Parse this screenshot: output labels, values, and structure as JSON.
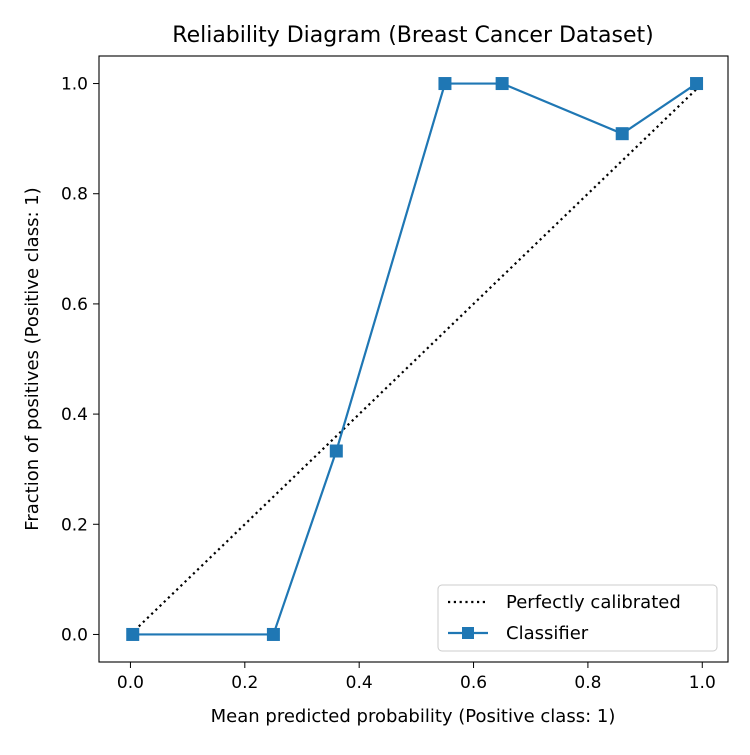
{
  "chart_data": {
    "type": "line",
    "title": "Reliability Diagram (Breast Cancer Dataset)",
    "xlabel": "Mean predicted probability (Positive class: 1)",
    "ylabel": "Fraction of positives (Positive class: 1)",
    "xlim": [
      -0.055,
      1.045
    ],
    "ylim": [
      -0.05,
      1.05
    ],
    "xticks": [
      0.0,
      0.2,
      0.4,
      0.6,
      0.8,
      1.0
    ],
    "xtick_labels": [
      "0.0",
      "0.2",
      "0.4",
      "0.6",
      "0.8",
      "1.0"
    ],
    "yticks": [
      0.0,
      0.2,
      0.4,
      0.6,
      0.8,
      1.0
    ],
    "ytick_labels": [
      "0.0",
      "0.2",
      "0.4",
      "0.6",
      "0.8",
      "1.0"
    ],
    "grid": false,
    "legend_position": "bottom-right",
    "series": [
      {
        "name": "Perfectly calibrated",
        "style": "dotted",
        "color": "#000000",
        "x": [
          0,
          1
        ],
        "y": [
          0,
          1
        ]
      },
      {
        "name": "Classifier",
        "style": "solid",
        "marker": "square",
        "color": "#1f77b4",
        "x": [
          0.004,
          0.25,
          0.36,
          0.55,
          0.65,
          0.86,
          0.99
        ],
        "y": [
          0.0,
          0.0,
          0.333,
          1.0,
          1.0,
          0.909,
          1.0
        ]
      }
    ]
  }
}
